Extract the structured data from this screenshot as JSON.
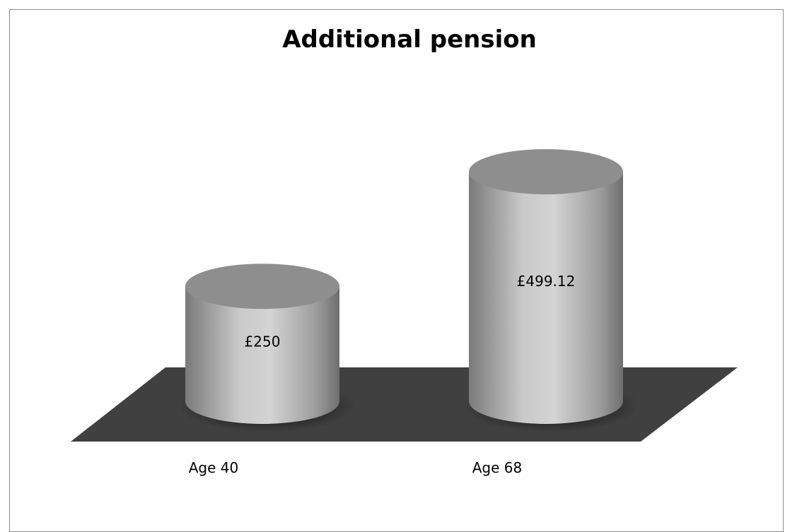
{
  "chart_data": {
    "type": "bar",
    "title": "Additional pension",
    "categories": [
      "Age 40",
      "Age 68"
    ],
    "values": [
      250,
      499.12
    ],
    "data_labels": [
      "£250",
      "£499.12"
    ],
    "xlabel": "",
    "ylabel": "",
    "ylim": [
      0,
      500
    ],
    "grid": false,
    "legend": "none",
    "style": "3d-cylinder",
    "colors": {
      "floor": "#404040",
      "cylinder_dark": "#7a7a7a",
      "cylinder_light": "#d4d4d4",
      "cylinder_top": "#8e8e8e"
    }
  }
}
